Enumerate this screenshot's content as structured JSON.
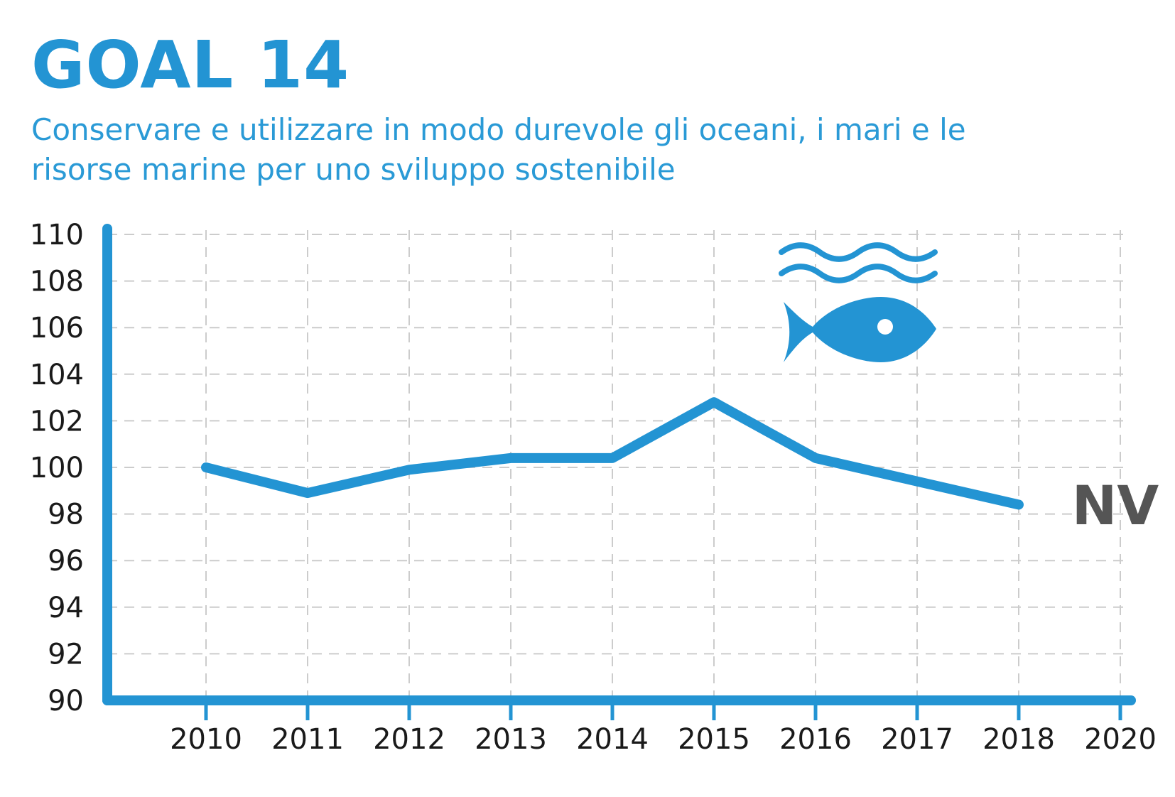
{
  "header": {
    "title": "GOAL 14",
    "subtitle": "Conservare e utilizzare in modo durevole gli oceani, i mari e le risorse marine per uno sviluppo sostenibile"
  },
  "icon": {
    "name": "ocean-fish-icon",
    "color": "#2394d3"
  },
  "chart_data": {
    "type": "line",
    "categories": [
      "2010",
      "2011",
      "2012",
      "2013",
      "2014",
      "2015",
      "2016",
      "2017",
      "2018",
      "2020"
    ],
    "series": [
      {
        "values": [
          100.0,
          98.9,
          99.9,
          100.4,
          100.4,
          102.8,
          100.4,
          99.4,
          98.4,
          null
        ]
      }
    ],
    "end_label": "NV",
    "ylim": [
      90,
      110
    ],
    "yticks": [
      110,
      108,
      106,
      104,
      102,
      100,
      98,
      96,
      94,
      92,
      90
    ],
    "grid": true,
    "line_color": "#2394d3",
    "axis_color": "#2394d3",
    "grid_color": "#cccccc",
    "end_label_color": "#555555"
  }
}
